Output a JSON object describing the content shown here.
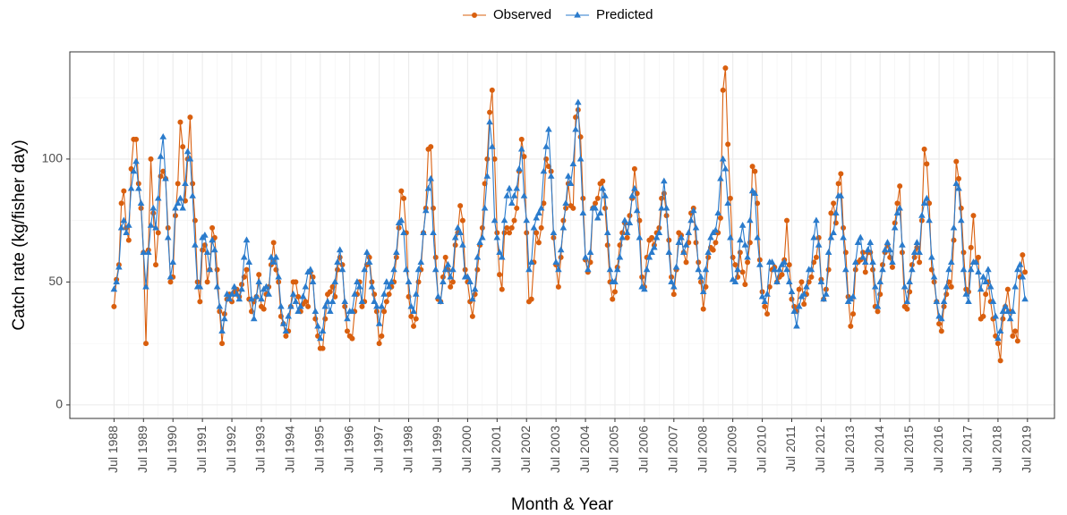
{
  "chart_data": {
    "type": "line",
    "x_label": "Month & Year",
    "y_label": "Catch rate (kg/fisher day)",
    "legend_position": "top",
    "grid": true,
    "x": [
      "1988-07",
      "1988-08",
      "1988-09",
      "1988-10",
      "1988-11",
      "1988-12",
      "1989-01",
      "1989-02",
      "1989-03",
      "1989-04",
      "1989-05",
      "1989-06",
      "1989-07",
      "1989-08",
      "1989-09",
      "1989-10",
      "1989-11",
      "1989-12",
      "1990-01",
      "1990-02",
      "1990-03",
      "1990-04",
      "1990-05",
      "1990-06",
      "1990-07",
      "1990-08",
      "1990-09",
      "1990-10",
      "1990-11",
      "1990-12",
      "1991-01",
      "1991-02",
      "1991-03",
      "1991-04",
      "1991-05",
      "1991-06",
      "1991-07",
      "1991-08",
      "1991-09",
      "1991-10",
      "1991-11",
      "1991-12",
      "1992-01",
      "1992-02",
      "1992-03",
      "1992-04",
      "1992-05",
      "1992-06",
      "1992-07",
      "1992-08",
      "1992-09",
      "1992-10",
      "1992-11",
      "1992-12",
      "1993-01",
      "1993-02",
      "1993-03",
      "1993-04",
      "1993-05",
      "1993-06",
      "1993-07",
      "1993-08",
      "1993-09",
      "1993-10",
      "1993-11",
      "1993-12",
      "1994-01",
      "1994-02",
      "1994-03",
      "1994-04",
      "1994-05",
      "1994-06",
      "1994-07",
      "1994-08",
      "1994-09",
      "1994-10",
      "1994-11",
      "1994-12",
      "1995-01",
      "1995-02",
      "1995-03",
      "1995-04",
      "1995-05",
      "1995-06",
      "1995-07",
      "1995-08",
      "1995-09",
      "1995-10",
      "1995-11",
      "1995-12",
      "1996-01",
      "1996-02",
      "1996-03",
      "1996-04",
      "1996-05",
      "1996-06",
      "1996-07",
      "1996-08",
      "1996-09",
      "1996-10",
      "1996-11",
      "1996-12",
      "1997-01",
      "1997-02",
      "1997-03",
      "1997-04",
      "1997-05",
      "1997-06",
      "1997-07",
      "1997-08",
      "1997-09",
      "1997-10",
      "1997-11",
      "1997-12",
      "1998-01",
      "1998-02",
      "1998-03",
      "1998-04",
      "1998-05",
      "1998-06",
      "1998-07",
      "1998-08",
      "1998-09",
      "1998-10",
      "1998-11",
      "1998-12",
      "1999-01",
      "1999-02",
      "1999-03",
      "1999-04",
      "1999-05",
      "1999-06",
      "1999-07",
      "1999-08",
      "1999-09",
      "1999-10",
      "1999-11",
      "1999-12",
      "2000-01",
      "2000-02",
      "2000-03",
      "2000-04",
      "2000-05",
      "2000-06",
      "2000-07",
      "2000-08",
      "2000-09",
      "2000-10",
      "2000-11",
      "2000-12",
      "2001-01",
      "2001-02",
      "2001-03",
      "2001-04",
      "2001-05",
      "2001-06",
      "2001-07",
      "2001-08",
      "2001-09",
      "2001-10",
      "2001-11",
      "2001-12",
      "2002-01",
      "2002-02",
      "2002-03",
      "2002-04",
      "2002-05",
      "2002-06",
      "2002-07",
      "2002-08",
      "2002-09",
      "2002-10",
      "2002-11",
      "2002-12",
      "2003-01",
      "2003-02",
      "2003-03",
      "2003-04",
      "2003-05",
      "2003-06",
      "2003-07",
      "2003-08",
      "2003-09",
      "2003-10",
      "2003-11",
      "2003-12",
      "2004-01",
      "2004-02",
      "2004-03",
      "2004-04",
      "2004-05",
      "2004-06",
      "2004-07",
      "2004-08",
      "2004-09",
      "2004-10",
      "2004-11",
      "2004-12",
      "2005-01",
      "2005-02",
      "2005-03",
      "2005-04",
      "2005-05",
      "2005-06",
      "2005-07",
      "2005-08",
      "2005-09",
      "2005-10",
      "2005-11",
      "2005-12",
      "2006-01",
      "2006-02",
      "2006-03",
      "2006-04",
      "2006-05",
      "2006-06",
      "2006-07",
      "2006-08",
      "2006-09",
      "2006-10",
      "2006-11",
      "2006-12",
      "2007-01",
      "2007-02",
      "2007-03",
      "2007-04",
      "2007-05",
      "2007-06",
      "2007-07",
      "2007-08",
      "2007-09",
      "2007-10",
      "2007-11",
      "2007-12",
      "2008-01",
      "2008-02",
      "2008-03",
      "2008-04",
      "2008-05",
      "2008-06",
      "2008-07",
      "2008-08",
      "2008-09",
      "2008-10",
      "2008-11",
      "2008-12",
      "2009-01",
      "2009-02",
      "2009-03",
      "2009-04",
      "2009-05",
      "2009-06",
      "2009-07",
      "2009-08",
      "2009-09",
      "2009-10",
      "2009-11",
      "2009-12",
      "2010-01",
      "2010-02",
      "2010-03",
      "2010-04",
      "2010-05",
      "2010-06",
      "2010-07",
      "2010-08",
      "2010-09",
      "2010-10",
      "2010-11",
      "2010-12",
      "2011-01",
      "2011-02",
      "2011-03",
      "2011-04",
      "2011-05",
      "2011-06",
      "2011-07",
      "2011-08",
      "2011-09",
      "2011-10",
      "2011-11",
      "2011-12",
      "2012-01",
      "2012-02",
      "2012-03",
      "2012-04",
      "2012-05",
      "2012-06",
      "2012-07",
      "2012-08",
      "2012-09",
      "2012-10",
      "2012-11",
      "2012-12",
      "2013-01",
      "2013-02",
      "2013-03",
      "2013-04",
      "2013-05",
      "2013-06",
      "2013-07",
      "2013-08",
      "2013-09",
      "2013-10",
      "2013-11",
      "2013-12",
      "2014-01",
      "2014-02",
      "2014-03",
      "2014-04",
      "2014-05",
      "2014-06",
      "2014-07",
      "2014-08",
      "2014-09",
      "2014-10",
      "2014-11",
      "2014-12",
      "2015-01",
      "2015-02",
      "2015-03",
      "2015-04",
      "2015-05",
      "2015-06",
      "2015-07",
      "2015-08",
      "2015-09",
      "2015-10",
      "2015-11",
      "2015-12",
      "2016-01",
      "2016-02",
      "2016-03",
      "2016-04",
      "2016-05",
      "2016-06",
      "2016-07",
      "2016-08",
      "2016-09",
      "2016-10",
      "2016-11",
      "2016-12",
      "2017-01",
      "2017-02",
      "2017-03",
      "2017-04",
      "2017-05",
      "2017-06",
      "2017-07",
      "2017-08",
      "2017-09",
      "2017-10",
      "2017-11",
      "2017-12",
      "2018-01",
      "2018-02",
      "2018-03",
      "2018-04",
      "2018-05",
      "2018-06",
      "2018-07",
      "2018-08",
      "2018-09",
      "2018-10",
      "2018-11",
      "2018-12",
      "2019-01",
      "2019-02",
      "2019-03",
      "2019-04",
      "2019-05",
      "2019-06"
    ],
    "series": [
      {
        "name": "Observed",
        "color": "#d95f0e",
        "marker": "circle",
        "values": [
          40,
          51,
          57,
          82,
          87,
          72,
          67,
          96,
          108,
          108,
          90,
          80,
          62,
          25,
          63,
          100,
          78,
          57,
          70,
          93,
          95,
          92,
          72,
          50,
          52,
          77,
          90,
          115,
          105,
          83,
          100,
          117,
          90,
          75,
          50,
          42,
          63,
          65,
          50,
          55,
          72,
          68,
          55,
          38,
          25,
          37,
          43,
          45,
          42,
          46,
          47,
          44,
          49,
          52,
          55,
          43,
          38,
          42,
          44,
          53,
          40,
          39,
          45,
          48,
          57,
          66,
          55,
          50,
          36,
          33,
          28,
          30,
          40,
          50,
          50,
          44,
          38,
          41,
          42,
          40,
          54,
          52,
          35,
          28,
          23,
          23,
          35,
          45,
          46,
          48,
          44,
          55,
          60,
          57,
          40,
          30,
          28,
          27,
          38,
          45,
          50,
          40,
          42,
          57,
          60,
          50,
          45,
          38,
          25,
          28,
          38,
          42,
          45,
          48,
          50,
          60,
          72,
          87,
          84,
          70,
          44,
          36,
          32,
          35,
          50,
          55,
          70,
          80,
          104,
          105,
          80,
          60,
          43,
          42,
          52,
          60,
          55,
          48,
          50,
          65,
          70,
          81,
          75,
          55,
          50,
          42,
          36,
          45,
          55,
          65,
          72,
          90,
          100,
          119,
          128,
          100,
          70,
          53,
          47,
          70,
          72,
          70,
          72,
          75,
          80,
          95,
          108,
          101,
          70,
          42,
          43,
          58,
          70,
          66,
          72,
          82,
          100,
          97,
          95,
          68,
          57,
          48,
          60,
          75,
          80,
          90,
          81,
          80,
          117,
          120,
          109,
          84,
          59,
          54,
          58,
          80,
          82,
          84,
          90,
          91,
          80,
          65,
          50,
          43,
          46,
          56,
          65,
          70,
          74,
          68,
          77,
          84,
          96,
          86,
          75,
          52,
          48,
          60,
          67,
          68,
          65,
          70,
          72,
          84,
          86,
          77,
          67,
          52,
          45,
          55,
          70,
          69,
          62,
          58,
          66,
          78,
          80,
          66,
          58,
          50,
          39,
          48,
          60,
          64,
          63,
          66,
          70,
          76,
          128,
          137,
          106,
          84,
          60,
          57,
          52,
          62,
          54,
          49,
          58,
          66,
          97,
          95,
          82,
          59,
          46,
          40,
          37,
          48,
          55,
          56,
          50,
          52,
          53,
          59,
          75,
          57,
          43,
          40,
          38,
          47,
          50,
          41,
          45,
          50,
          52,
          58,
          60,
          68,
          51,
          43,
          47,
          55,
          78,
          82,
          74,
          90,
          94,
          72,
          62,
          44,
          32,
          37,
          55,
          58,
          59,
          62,
          54,
          62,
          62,
          55,
          40,
          38,
          45,
          57,
          62,
          65,
          60,
          56,
          74,
          82,
          89,
          62,
          40,
          39,
          46,
          57,
          60,
          64,
          58,
          75,
          104,
          98,
          82,
          55,
          50,
          42,
          33,
          30,
          40,
          45,
          50,
          48,
          67,
          99,
          92,
          80,
          62,
          47,
          46,
          64,
          77,
          58,
          60,
          35,
          36,
          45,
          50,
          42,
          35,
          28,
          25,
          18,
          35,
          40,
          47,
          38,
          28,
          30,
          26,
          52,
          61,
          54
        ]
      },
      {
        "name": "Predicted",
        "color": "#2a7bcc",
        "marker": "triangle",
        "values": [
          47,
          50,
          56,
          72,
          75,
          70,
          73,
          88,
          95,
          99,
          88,
          82,
          62,
          48,
          62,
          73,
          80,
          72,
          84,
          101,
          109,
          92,
          68,
          52,
          58,
          80,
          82,
          84,
          80,
          90,
          103,
          100,
          85,
          65,
          48,
          48,
          68,
          69,
          62,
          55,
          67,
          63,
          48,
          40,
          30,
          35,
          45,
          43,
          45,
          48,
          45,
          43,
          47,
          60,
          67,
          58,
          43,
          35,
          44,
          50,
          43,
          47,
          48,
          45,
          60,
          58,
          60,
          52,
          40,
          33,
          30,
          36,
          40,
          45,
          42,
          38,
          40,
          44,
          48,
          54,
          55,
          50,
          38,
          32,
          27,
          30,
          40,
          42,
          38,
          42,
          50,
          58,
          63,
          55,
          42,
          35,
          38,
          38,
          45,
          50,
          48,
          42,
          55,
          62,
          58,
          48,
          42,
          40,
          33,
          40,
          45,
          50,
          48,
          50,
          55,
          62,
          74,
          75,
          70,
          55,
          50,
          40,
          38,
          45,
          55,
          58,
          70,
          79,
          88,
          92,
          70,
          55,
          44,
          42,
          50,
          55,
          57,
          52,
          55,
          68,
          72,
          70,
          65,
          52,
          52,
          50,
          43,
          47,
          60,
          66,
          68,
          80,
          93,
          115,
          105,
          75,
          68,
          62,
          60,
          75,
          85,
          88,
          82,
          85,
          88,
          96,
          104,
          85,
          75,
          55,
          58,
          72,
          76,
          78,
          80,
          95,
          105,
          112,
          93,
          70,
          58,
          55,
          63,
          72,
          82,
          93,
          90,
          98,
          112,
          123,
          100,
          78,
          60,
          55,
          62,
          80,
          80,
          76,
          78,
          88,
          85,
          70,
          55,
          50,
          50,
          55,
          60,
          68,
          75,
          70,
          74,
          85,
          88,
          79,
          68,
          48,
          47,
          55,
          60,
          62,
          64,
          68,
          70,
          80,
          91,
          80,
          62,
          50,
          48,
          56,
          66,
          68,
          62,
          65,
          70,
          75,
          79,
          72,
          55,
          52,
          46,
          55,
          62,
          68,
          70,
          71,
          78,
          92,
          100,
          96,
          82,
          68,
          51,
          50,
          55,
          67,
          73,
          65,
          60,
          75,
          87,
          86,
          68,
          57,
          44,
          42,
          45,
          58,
          58,
          55,
          50,
          55,
          57,
          58,
          55,
          50,
          46,
          38,
          32,
          40,
          44,
          45,
          48,
          55,
          55,
          68,
          75,
          65,
          50,
          43,
          45,
          62,
          68,
          70,
          78,
          85,
          85,
          68,
          55,
          42,
          43,
          44,
          58,
          66,
          68,
          60,
          58,
          63,
          66,
          58,
          48,
          40,
          50,
          55,
          63,
          66,
          63,
          58,
          72,
          78,
          80,
          65,
          48,
          42,
          50,
          55,
          62,
          66,
          62,
          77,
          82,
          84,
          75,
          60,
          52,
          42,
          36,
          35,
          42,
          48,
          55,
          58,
          72,
          90,
          88,
          75,
          55,
          45,
          42,
          55,
          58,
          58,
          54,
          47,
          52,
          50,
          55,
          48,
          42,
          36,
          27,
          30,
          38,
          40,
          38,
          35,
          38,
          48,
          55,
          57,
          52,
          43
        ]
      }
    ],
    "xlim": [
      "1987-01",
      "2020-06"
    ],
    "xticks": [
      {
        "value": "1988-07",
        "label": "Jul 1988"
      },
      {
        "value": "1989-07",
        "label": "Jul 1989"
      },
      {
        "value": "1990-07",
        "label": "Jul 1990"
      },
      {
        "value": "1991-07",
        "label": "Jul 1991"
      },
      {
        "value": "1992-07",
        "label": "Jul 1992"
      },
      {
        "value": "1993-07",
        "label": "Jul 1993"
      },
      {
        "value": "1994-07",
        "label": "Jul 1994"
      },
      {
        "value": "1995-07",
        "label": "Jul 1995"
      },
      {
        "value": "1996-07",
        "label": "Jul 1996"
      },
      {
        "value": "1997-07",
        "label": "Jul 1997"
      },
      {
        "value": "1998-07",
        "label": "Jul 1998"
      },
      {
        "value": "1999-07",
        "label": "Jul 1999"
      },
      {
        "value": "2000-07",
        "label": "Jul 2000"
      },
      {
        "value": "2001-07",
        "label": "Jul 2001"
      },
      {
        "value": "2002-07",
        "label": "Jul 2002"
      },
      {
        "value": "2003-07",
        "label": "Jul 2003"
      },
      {
        "value": "2004-07",
        "label": "Jul 2004"
      },
      {
        "value": "2005-07",
        "label": "Jul 2005"
      },
      {
        "value": "2006-07",
        "label": "Jul 2006"
      },
      {
        "value": "2007-07",
        "label": "Jul 2007"
      },
      {
        "value": "2008-07",
        "label": "Jul 2008"
      },
      {
        "value": "2009-07",
        "label": "Jul 2009"
      },
      {
        "value": "2010-07",
        "label": "Jul 2010"
      },
      {
        "value": "2011-07",
        "label": "Jul 2011"
      },
      {
        "value": "2012-07",
        "label": "Jul 2012"
      },
      {
        "value": "2013-07",
        "label": "Jul 2013"
      },
      {
        "value": "2014-07",
        "label": "Jul 2014"
      },
      {
        "value": "2015-07",
        "label": "Jul 2015"
      },
      {
        "value": "2016-07",
        "label": "Jul 2016"
      },
      {
        "value": "2017-07",
        "label": "Jul 2017"
      },
      {
        "value": "2018-07",
        "label": "Jul 2018"
      },
      {
        "value": "2019-07",
        "label": "Jul 2019"
      }
    ],
    "ylim": [
      -5.5,
      143.6
    ],
    "yticks": [
      0,
      50,
      100
    ]
  }
}
